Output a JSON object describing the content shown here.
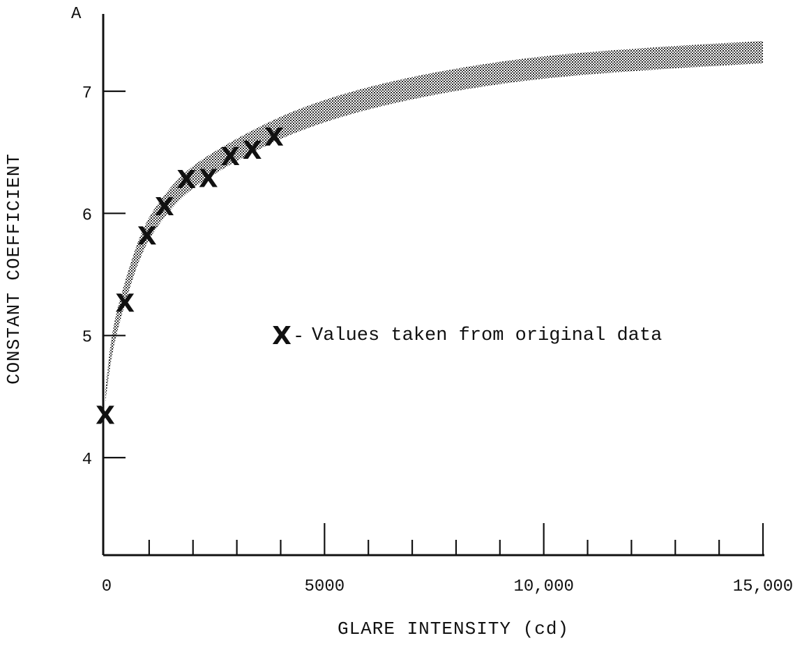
{
  "chart_data": {
    "type": "scatter",
    "panel_label": "A",
    "xlabel": "GLARE INTENSITY (cd)",
    "ylabel": "CONSTANT COEFFICIENT",
    "xlim": [
      0,
      15000
    ],
    "ylim": [
      3.4,
      7.6
    ],
    "x_major_ticks": [
      0,
      5000,
      10000,
      15000
    ],
    "x_minor_ticks": [
      1000,
      2000,
      3000,
      4000,
      6000,
      7000,
      8000,
      9000,
      11000,
      12000,
      13000,
      14000
    ],
    "x_tick_labels": [
      "0",
      "5000",
      "10,000",
      "15,000"
    ],
    "y_ticks": [
      4,
      5,
      6,
      7
    ],
    "y_tick_labels": [
      "4",
      "5",
      "6",
      "7"
    ],
    "grid": false,
    "series": [
      {
        "marker": "X",
        "x": [
          0,
          450,
          950,
          1350,
          1850,
          2350,
          2850,
          3350,
          3850
        ],
        "y": [
          4.35,
          5.27,
          5.82,
          6.06,
          6.28,
          6.29,
          6.47,
          6.52,
          6.63
        ]
      }
    ],
    "trend_band": {
      "style": "stippled",
      "x": [
        0,
        150,
        400,
        800,
        1200,
        1800,
        2500,
        3500,
        4500,
        6000,
        8000,
        10000,
        12500,
        15000
      ],
      "y": [
        4.5,
        4.95,
        5.3,
        5.75,
        6.0,
        6.25,
        6.42,
        6.62,
        6.78,
        6.95,
        7.1,
        7.2,
        7.27,
        7.32
      ]
    },
    "legend": {
      "marker": "X",
      "dash": "-",
      "text": "Values taken from original data",
      "placement": "center-right"
    }
  }
}
